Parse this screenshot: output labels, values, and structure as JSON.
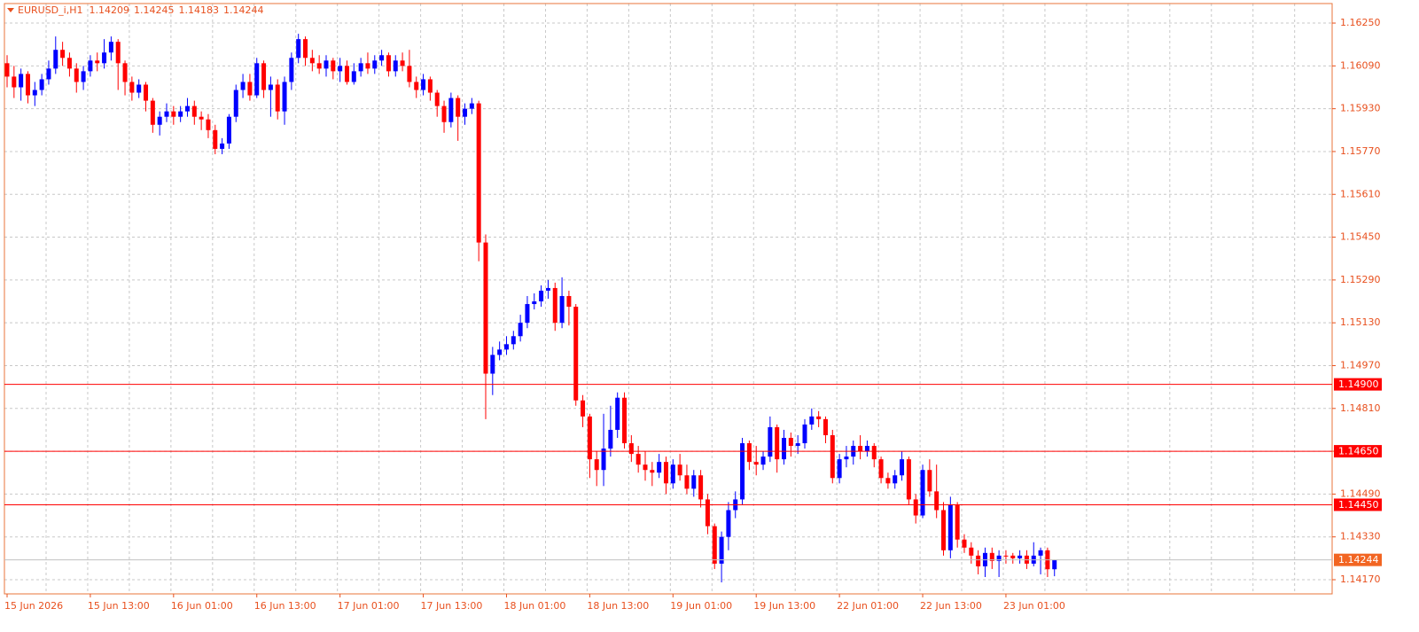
{
  "chart_data": {
    "type": "candlestick",
    "title": "EURUSD_i,H1",
    "categories": [
      "15 Jun 2026",
      null,
      null,
      null,
      null,
      null,
      null,
      null,
      null,
      null,
      null,
      null,
      "15 Jun 13:00",
      null,
      null,
      null,
      null,
      null,
      null,
      null,
      null,
      null,
      null,
      null,
      "16 Jun 01:00",
      null,
      null,
      null,
      null,
      null,
      null,
      null,
      null,
      null,
      null,
      null,
      "16 Jun 13:00",
      null,
      null,
      null,
      null,
      null,
      null,
      null,
      null,
      null,
      null,
      null,
      "17 Jun 01:00",
      null,
      null,
      null,
      null,
      null,
      null,
      null,
      null,
      null,
      null,
      null,
      "17 Jun 13:00",
      null,
      null,
      null,
      null,
      null,
      null,
      null,
      null,
      null,
      null,
      null,
      "18 Jun 01:00",
      null,
      null,
      null,
      null,
      null,
      null,
      null,
      null,
      null,
      null,
      null,
      "18 Jun 13:00",
      null,
      null,
      null,
      null,
      null,
      null,
      null,
      null,
      null,
      null,
      null,
      "19 Jun 01:00",
      null,
      null,
      null,
      null,
      null,
      null,
      null,
      null,
      null,
      null,
      null,
      "19 Jun 13:00",
      null,
      null,
      null,
      null,
      null,
      null,
      null,
      null,
      null,
      null,
      null,
      "22 Jun 01:00",
      null,
      null,
      null,
      null,
      null,
      null,
      null,
      null,
      null,
      null,
      null,
      "22 Jun 13:00",
      null,
      null,
      null,
      null,
      null,
      null,
      null,
      null,
      null,
      null,
      null,
      "23 Jun 01:00",
      null,
      null,
      null,
      null,
      null,
      null,
      null
    ],
    "open": [
      1.161,
      1.1605,
      1.1601,
      1.1606,
      1.1598,
      1.16,
      1.1604,
      1.1608,
      1.1615,
      1.1612,
      1.1608,
      1.1603,
      1.1607,
      1.1611,
      1.161,
      1.1614,
      1.1618,
      1.161,
      1.1603,
      1.1599,
      1.1602,
      1.1596,
      1.1587,
      1.159,
      1.1592,
      1.159,
      1.1592,
      1.1594,
      1.159,
      1.1589,
      1.1585,
      1.1578,
      1.158,
      1.159,
      1.16,
      1.1603,
      1.1598,
      1.161,
      1.16,
      1.1602,
      1.1592,
      1.1603,
      1.1612,
      1.1619,
      1.1612,
      1.161,
      1.1608,
      1.1611,
      1.1607,
      1.1609,
      1.1603,
      1.1607,
      1.161,
      1.1608,
      1.1611,
      1.1613,
      1.1607,
      1.1611,
      1.1609,
      1.1603,
      1.16,
      1.1604,
      1.1599,
      1.1594,
      1.1588,
      1.1597,
      1.159,
      1.1593,
      1.1595,
      1.1543,
      1.1494,
      1.1501,
      1.1503,
      1.1505,
      1.1508,
      1.1513,
      1.152,
      1.1521,
      1.1525,
      1.1526,
      1.1513,
      1.1523,
      1.1519,
      1.1484,
      1.1478,
      1.1462,
      1.1458,
      1.1466,
      1.1473,
      1.1485,
      1.1468,
      1.1464,
      1.146,
      1.1458,
      1.1457,
      1.1461,
      1.1453,
      1.146,
      1.1456,
      1.1451,
      1.1456,
      1.1447,
      1.1437,
      1.1423,
      1.1433,
      1.1443,
      1.1447,
      1.1468,
      1.1461,
      1.146,
      1.1463,
      1.1474,
      1.1462,
      1.147,
      1.1467,
      1.1468,
      1.1475,
      1.1478,
      1.1477,
      1.1471,
      1.1455,
      1.1462,
      1.1463,
      1.1467,
      1.1465,
      1.1467,
      1.1462,
      1.1455,
      1.1453,
      1.1456,
      1.1462,
      1.1447,
      1.1441,
      1.1458,
      1.145,
      1.1443,
      1.1428,
      1.1445,
      1.1432,
      1.1429,
      1.1426,
      1.1422,
      1.1427,
      1.1424,
      1.1426,
      1.1426,
      1.1425,
      1.1426,
      1.1423,
      1.1426,
      1.1428,
      1.14209
    ],
    "high": [
      1.1613,
      1.1609,
      1.1608,
      1.1607,
      1.1603,
      1.1606,
      1.1611,
      1.162,
      1.1618,
      1.1614,
      1.161,
      1.1609,
      1.1613,
      1.1614,
      1.1619,
      1.162,
      1.1619,
      1.1611,
      1.1605,
      1.1604,
      1.1603,
      1.1597,
      1.1592,
      1.1595,
      1.1594,
      1.1594,
      1.1597,
      1.1596,
      1.1592,
      1.1591,
      1.1587,
      1.1582,
      1.1591,
      1.1602,
      1.1606,
      1.1606,
      1.1612,
      1.1611,
      1.1605,
      1.1604,
      1.1605,
      1.1614,
      1.1621,
      1.162,
      1.1615,
      1.1613,
      1.1613,
      1.1612,
      1.1612,
      1.1611,
      1.161,
      1.1612,
      1.1614,
      1.1613,
      1.1615,
      1.1614,
      1.1613,
      1.1614,
      1.1615,
      1.1605,
      1.1606,
      1.1605,
      1.16,
      1.1596,
      1.1599,
      1.1598,
      1.1595,
      1.1597,
      1.1596,
      1.1546,
      1.1504,
      1.1506,
      1.1508,
      1.151,
      1.1516,
      1.1523,
      1.1524,
      1.1527,
      1.1529,
      1.1528,
      1.153,
      1.1525,
      1.152,
      1.1486,
      1.1479,
      1.1465,
      1.1479,
      1.1482,
      1.1487,
      1.1487,
      1.1471,
      1.1467,
      1.1465,
      1.1461,
      1.1464,
      1.1463,
      1.1462,
      1.1464,
      1.146,
      1.1458,
      1.1458,
      1.1449,
      1.1438,
      1.1435,
      1.1446,
      1.145,
      1.147,
      1.1469,
      1.1467,
      1.1465,
      1.1478,
      1.1475,
      1.1473,
      1.1472,
      1.1471,
      1.1477,
      1.1481,
      1.148,
      1.1478,
      1.1473,
      1.1464,
      1.1467,
      1.1469,
      1.1471,
      1.1469,
      1.1468,
      1.1463,
      1.1457,
      1.1458,
      1.1465,
      1.1463,
      1.1449,
      1.146,
      1.1462,
      1.146,
      1.1446,
      1.1448,
      1.1446,
      1.1434,
      1.1431,
      1.1428,
      1.1429,
      1.1429,
      1.1428,
      1.1428,
      1.1427,
      1.1428,
      1.1428,
      1.1431,
      1.1429,
      1.1429,
      1.14245
    ],
    "low": [
      1.1601,
      1.1597,
      1.1596,
      1.1595,
      1.1594,
      1.1598,
      1.1602,
      1.1606,
      1.1609,
      1.1605,
      1.1599,
      1.16,
      1.1605,
      1.1607,
      1.1608,
      1.1611,
      1.16,
      1.1598,
      1.1596,
      1.1597,
      1.1592,
      1.1584,
      1.1583,
      1.1588,
      1.1587,
      1.1588,
      1.159,
      1.1587,
      1.1585,
      1.1582,
      1.1576,
      1.1576,
      1.1578,
      1.1588,
      1.1597,
      1.1596,
      1.1597,
      1.1597,
      1.159,
      1.1589,
      1.1587,
      1.16,
      1.161,
      1.1609,
      1.1607,
      1.1606,
      1.1605,
      1.1604,
      1.1603,
      1.1602,
      1.1602,
      1.1605,
      1.1606,
      1.1606,
      1.1609,
      1.1605,
      1.1605,
      1.1607,
      1.1601,
      1.1597,
      1.1598,
      1.1596,
      1.159,
      1.1584,
      1.1586,
      1.1581,
      1.1587,
      1.1591,
      1.1536,
      1.1477,
      1.1486,
      1.1499,
      1.1501,
      1.1503,
      1.1506,
      1.1511,
      1.1518,
      1.1519,
      1.1522,
      1.151,
      1.1511,
      1.1512,
      1.1482,
      1.1474,
      1.1455,
      1.1452,
      1.1452,
      1.1463,
      1.147,
      1.1466,
      1.1461,
      1.1457,
      1.1454,
      1.1452,
      1.1455,
      1.1449,
      1.1451,
      1.1454,
      1.1449,
      1.1448,
      1.1444,
      1.1434,
      1.1421,
      1.1416,
      1.1428,
      1.144,
      1.1445,
      1.1458,
      1.1456,
      1.1458,
      1.1461,
      1.1457,
      1.146,
      1.1463,
      1.1464,
      1.1466,
      1.1473,
      1.1474,
      1.1468,
      1.1453,
      1.1453,
      1.1459,
      1.146,
      1.1462,
      1.1463,
      1.1459,
      1.1453,
      1.1451,
      1.1451,
      1.1454,
      1.1445,
      1.1438,
      1.144,
      1.1448,
      1.144,
      1.1426,
      1.1425,
      1.1429,
      1.1427,
      1.1423,
      1.1419,
      1.1418,
      1.1421,
      1.1418,
      1.1423,
      1.1423,
      1.1423,
      1.1421,
      1.1422,
      1.1419,
      1.1418,
      1.14183
    ],
    "close": [
      1.1605,
      1.1601,
      1.1606,
      1.1598,
      1.16,
      1.1604,
      1.1608,
      1.1615,
      1.1612,
      1.1608,
      1.1603,
      1.1607,
      1.1611,
      1.161,
      1.1614,
      1.1618,
      1.161,
      1.1603,
      1.1599,
      1.1602,
      1.1596,
      1.1587,
      1.159,
      1.1592,
      1.159,
      1.1592,
      1.1594,
      1.159,
      1.1589,
      1.1585,
      1.1578,
      1.158,
      1.159,
      1.16,
      1.1603,
      1.1598,
      1.161,
      1.16,
      1.1602,
      1.1592,
      1.1603,
      1.1612,
      1.1619,
      1.1612,
      1.161,
      1.1608,
      1.1611,
      1.1607,
      1.1609,
      1.1603,
      1.1607,
      1.161,
      1.1608,
      1.1611,
      1.1613,
      1.1607,
      1.1611,
      1.1609,
      1.1603,
      1.16,
      1.1604,
      1.1599,
      1.1594,
      1.1588,
      1.1597,
      1.159,
      1.1593,
      1.1595,
      1.1543,
      1.1494,
      1.1501,
      1.1503,
      1.1505,
      1.1508,
      1.1513,
      1.152,
      1.1521,
      1.1525,
      1.1526,
      1.1513,
      1.1523,
      1.1519,
      1.1484,
      1.1478,
      1.1462,
      1.1458,
      1.1466,
      1.1473,
      1.1485,
      1.1468,
      1.1464,
      1.146,
      1.1458,
      1.1457,
      1.1461,
      1.1453,
      1.146,
      1.1456,
      1.1451,
      1.1456,
      1.1447,
      1.1437,
      1.1423,
      1.1433,
      1.1443,
      1.1447,
      1.1468,
      1.1461,
      1.146,
      1.1463,
      1.1474,
      1.1462,
      1.147,
      1.1467,
      1.1468,
      1.1475,
      1.1478,
      1.1477,
      1.1471,
      1.1455,
      1.1462,
      1.1463,
      1.1467,
      1.1465,
      1.1467,
      1.1462,
      1.1455,
      1.1453,
      1.1456,
      1.1462,
      1.1447,
      1.1441,
      1.1458,
      1.145,
      1.1443,
      1.1428,
      1.1445,
      1.1432,
      1.1429,
      1.1426,
      1.1422,
      1.1427,
      1.1424,
      1.1426,
      1.1426,
      1.1425,
      1.1426,
      1.1423,
      1.1426,
      1.1428,
      1.14209,
      1.14244
    ],
    "up_color": "#0000ff",
    "down_color": "#ff0000",
    "ylim": [
      1.14117,
      1.16323
    ],
    "yticks": [
      {
        "value": 1.1625,
        "label": "1.16250"
      },
      {
        "value": 1.1609,
        "label": "1.16090"
      },
      {
        "value": 1.1593,
        "label": "1.15930"
      },
      {
        "value": 1.1577,
        "label": "1.15770"
      },
      {
        "value": 1.1561,
        "label": "1.15610"
      },
      {
        "value": 1.1545,
        "label": "1.15450"
      },
      {
        "value": 1.1529,
        "label": "1.15290"
      },
      {
        "value": 1.1513,
        "label": "1.15130"
      },
      {
        "value": 1.1497,
        "label": "1.14970"
      },
      {
        "value": 1.1481,
        "label": "1.14810"
      },
      {
        "value": 1.1465,
        "label": "1.14650"
      },
      {
        "value": 1.1449,
        "label": "1.14490"
      },
      {
        "value": 1.1433,
        "label": "1.14330"
      },
      {
        "value": 1.1417,
        "label": "1.14170"
      }
    ],
    "levels": [
      {
        "value": 1.149,
        "label": "1.14900"
      },
      {
        "value": 1.1465,
        "label": "1.14650"
      },
      {
        "value": 1.1445,
        "label": "1.14450"
      }
    ],
    "level_color": "#ff0000",
    "grid": true
  }
}
